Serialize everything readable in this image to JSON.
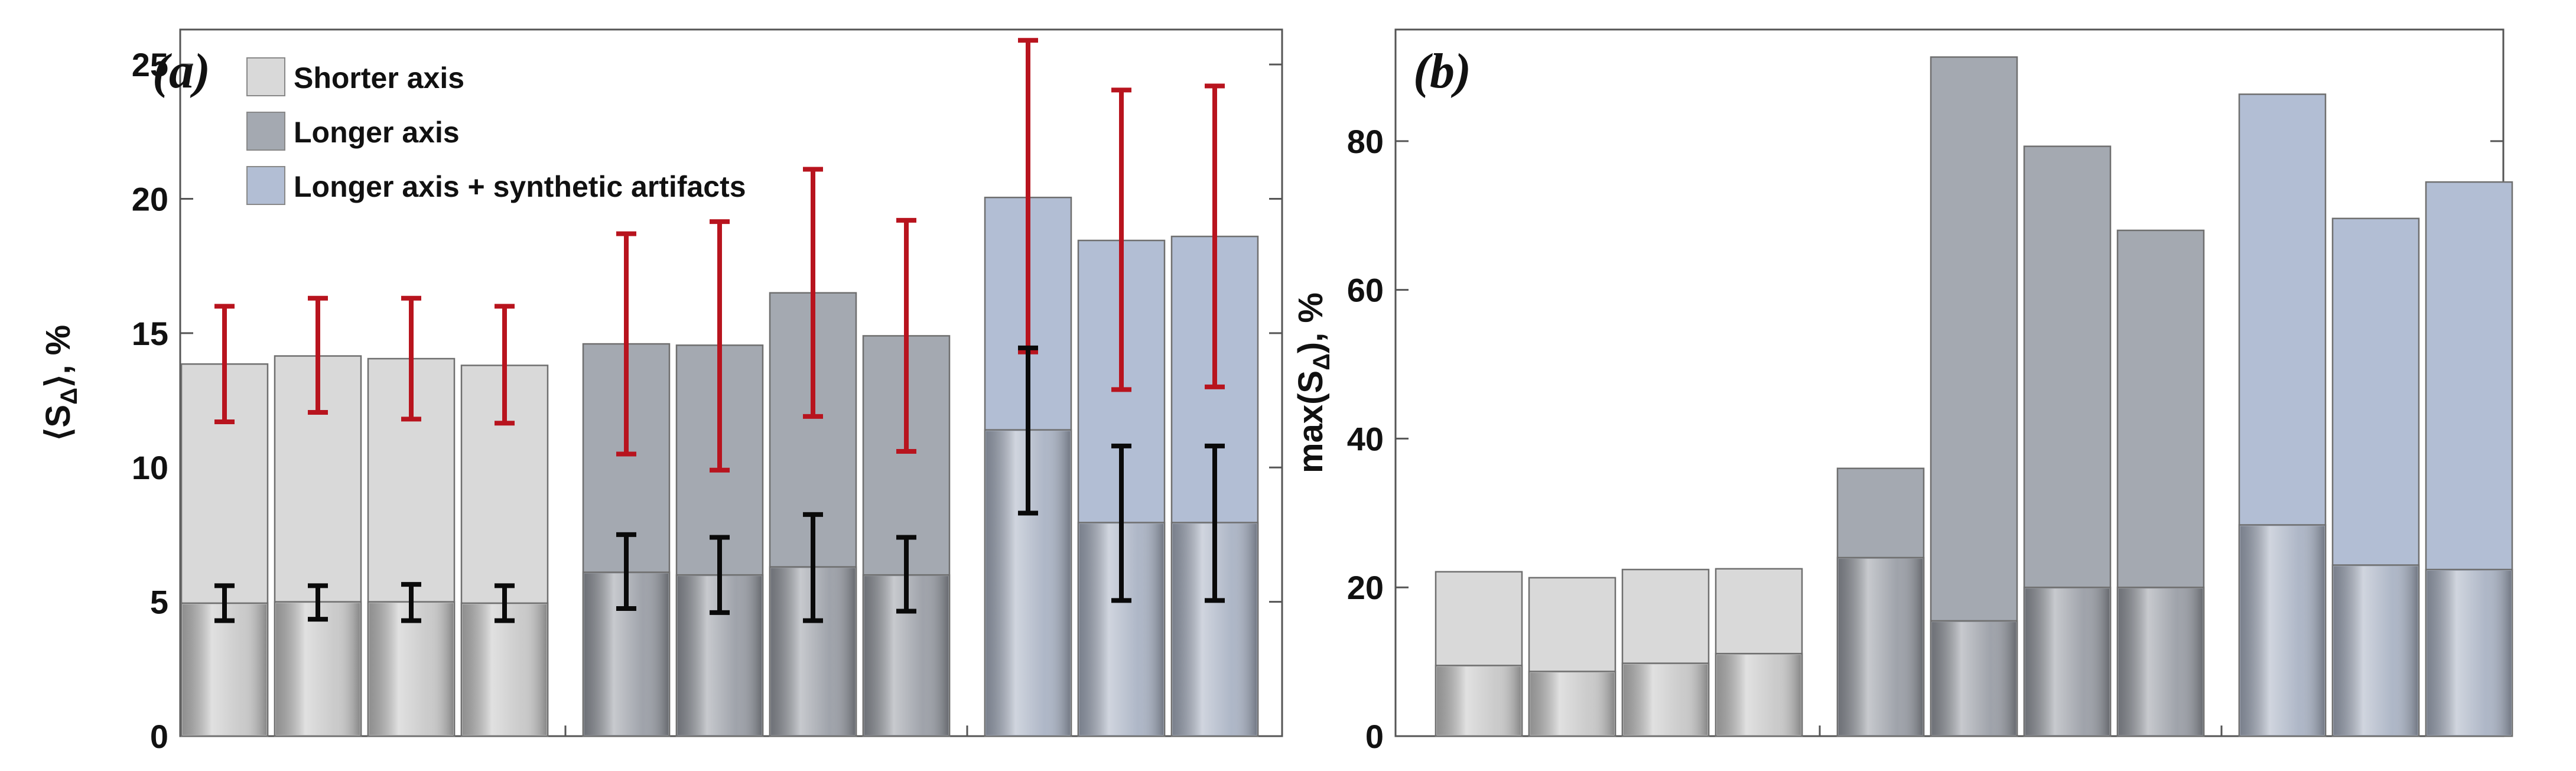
{
  "chart_data": [
    {
      "type": "bar",
      "panel_label": "(a)",
      "ylabel": "⟨S_Δ⟩, %",
      "ylabel_parts": {
        "pre": "⟨S",
        "sub": "Δ",
        "post": "⟩, %"
      },
      "ylim": [
        0,
        26.3
      ],
      "yticks": [
        0,
        5,
        10,
        15,
        20,
        25
      ],
      "legend_position": "top-left",
      "legend": [
        {
          "label": "Shorter axis",
          "color": "#d9d9d9"
        },
        {
          "label": "Longer axis",
          "color": "#a4a9b1"
        },
        {
          "label": "Longer axis + synthetic artifacts",
          "color": "#b2bed4"
        }
      ],
      "groups": [
        {
          "name": "Shorter axis",
          "color": "#d9d9d9",
          "inner_color": "#c8c8c8",
          "values": [
            13.85,
            14.15,
            14.05,
            13.8
          ],
          "error": [
            [
              11.7,
              16.0
            ],
            [
              12.05,
              16.3
            ],
            [
              11.8,
              16.3
            ],
            [
              11.65,
              16.0
            ]
          ],
          "inner_values": [
            4.95,
            5.0,
            5.0,
            4.95
          ],
          "inner_error": [
            [
              4.3,
              5.6
            ],
            [
              4.35,
              5.6
            ],
            [
              4.3,
              5.65
            ],
            [
              4.3,
              5.6
            ]
          ]
        },
        {
          "name": "Longer axis",
          "color": "#a4a9b1",
          "inner_color": "#9a9ea6",
          "values": [
            14.6,
            14.55,
            16.5,
            14.9
          ],
          "error": [
            [
              10.5,
              18.7
            ],
            [
              9.9,
              19.15
            ],
            [
              11.9,
              21.1
            ],
            [
              10.6,
              19.2
            ]
          ],
          "inner_values": [
            6.1,
            6.0,
            6.3,
            6.0
          ],
          "inner_error": [
            [
              4.75,
              7.5
            ],
            [
              4.6,
              7.4
            ],
            [
              4.3,
              8.25
            ],
            [
              4.65,
              7.4
            ]
          ]
        },
        {
          "name": "Longer axis + synthetic artifacts",
          "color": "#b2bed4",
          "inner_color": "#aab3c4",
          "values": [
            20.05,
            18.45,
            18.6
          ],
          "error": [
            [
              14.3,
              25.9
            ],
            [
              12.9,
              24.05
            ],
            [
              13.0,
              24.2
            ]
          ],
          "inner_values": [
            11.4,
            7.95,
            7.95
          ],
          "inner_error": [
            [
              8.3,
              14.45
            ],
            [
              5.05,
              10.8
            ],
            [
              5.05,
              10.8
            ]
          ]
        }
      ]
    },
    {
      "type": "bar",
      "panel_label": "(b)",
      "ylabel": "max(S_Δ), %",
      "ylabel_parts": {
        "pre": "max(S",
        "sub": "Δ",
        "post": "), %"
      },
      "ylim": [
        0,
        95
      ],
      "yticks": [
        0,
        20,
        40,
        60,
        80
      ],
      "groups": [
        {
          "name": "Shorter axis",
          "color": "#d9d9d9",
          "inner_color": "#c8c8c8",
          "values": [
            22.1,
            21.3,
            22.4,
            22.5
          ],
          "inner_values": [
            9.5,
            8.7,
            9.8,
            11.1
          ]
        },
        {
          "name": "Longer axis",
          "color": "#a4a9b1",
          "inner_color": "#9a9ea6",
          "values": [
            36.0,
            91.3,
            79.3,
            68.0
          ],
          "inner_values": [
            24.0,
            15.5,
            20.0,
            20.0
          ]
        },
        {
          "name": "Longer axis + synthetic artifacts",
          "color": "#b2bed4",
          "inner_color": "#aab3c4",
          "values": [
            86.3,
            69.6,
            74.5
          ],
          "inner_values": [
            28.4,
            23.0,
            22.4
          ]
        }
      ]
    }
  ]
}
